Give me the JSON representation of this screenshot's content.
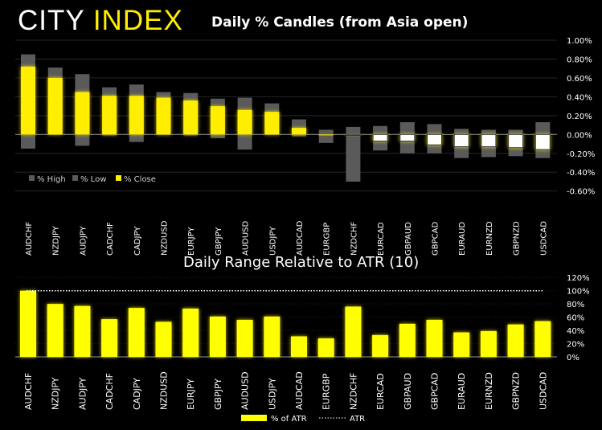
{
  "logo": {
    "part1": "CITY",
    "part2": "INDEX"
  },
  "colors": {
    "close": "#ffee00",
    "highlow": "#5a5a5a",
    "negative_close": "#ffffff",
    "atr_bar": "#ffff00"
  },
  "chart_data": [
    {
      "type": "bar",
      "title": "Daily % Candles (from Asia open)",
      "categories": [
        "AUDCHF",
        "NZDJPY",
        "AUDJPY",
        "CADCHF",
        "CADJPY",
        "NZDUSD",
        "EURJPY",
        "GBPJPY",
        "AUDUSD",
        "USDJPY",
        "AUDCAD",
        "EURGBP",
        "NZDCHF",
        "EURCAD",
        "GBPAUD",
        "GBPCAD",
        "EURAUD",
        "EURNZD",
        "GBPNZD",
        "USDCAD"
      ],
      "series": [
        {
          "name": "% High",
          "values": [
            0.85,
            0.71,
            0.64,
            0.5,
            0.53,
            0.45,
            0.44,
            0.38,
            0.39,
            0.33,
            0.16,
            0.05,
            0.08,
            0.09,
            0.13,
            0.11,
            0.06,
            0.05,
            0.05,
            0.13
          ]
        },
        {
          "name": "% Low",
          "values": [
            -0.15,
            0.0,
            -0.12,
            -0.01,
            -0.08,
            0.0,
            -0.01,
            -0.04,
            -0.16,
            0.0,
            -0.02,
            -0.09,
            -0.5,
            -0.17,
            -0.2,
            -0.2,
            -0.25,
            -0.24,
            -0.23,
            -0.25
          ]
        },
        {
          "name": "% Close",
          "values": [
            0.72,
            0.6,
            0.45,
            0.41,
            0.41,
            0.39,
            0.36,
            0.3,
            0.26,
            0.24,
            0.07,
            0.0,
            -0.01,
            -0.07,
            -0.07,
            -0.11,
            -0.13,
            -0.13,
            -0.14,
            -0.16
          ]
        }
      ],
      "yticks": [
        "1.00%",
        "0.80%",
        "0.60%",
        "0.40%",
        "0.20%",
        "0.00%",
        "-0.20%",
        "-0.40%",
        "-0.60%"
      ],
      "ylim": [
        -0.6,
        1.0
      ],
      "grid": true,
      "legend": "bottom-left",
      "y_axis": "right"
    },
    {
      "type": "bar",
      "title": "Daily Range Relative to ATR (10)",
      "categories": [
        "AUDCHF",
        "NZDJPY",
        "AUDJPY",
        "CADCHF",
        "CADJPY",
        "NZDUSD",
        "EURJPY",
        "GBPJPY",
        "AUDUSD",
        "USDJPY",
        "AUDCAD",
        "EURGBP",
        "NZDCHF",
        "EURCAD",
        "GBPAUD",
        "GBPCAD",
        "EURAUD",
        "EURNZD",
        "GBPNZD",
        "USDCAD"
      ],
      "series": [
        {
          "name": "% of ATR",
          "values": [
            100,
            80,
            77,
            57,
            74,
            53,
            73,
            61,
            56,
            61,
            31,
            28,
            76,
            33,
            50,
            56,
            37,
            39,
            49,
            54
          ]
        },
        {
          "name": "ATR",
          "values": [
            100,
            100,
            100,
            100,
            100,
            100,
            100,
            100,
            100,
            100,
            100,
            100,
            100,
            100,
            100,
            100,
            100,
            100,
            100,
            100
          ]
        }
      ],
      "yticks": [
        "120%",
        "100%",
        "80%",
        "60%",
        "40%",
        "20%",
        "0%"
      ],
      "ylim": [
        0,
        120
      ],
      "grid": true,
      "legend": "bottom",
      "y_axis": "right"
    }
  ]
}
